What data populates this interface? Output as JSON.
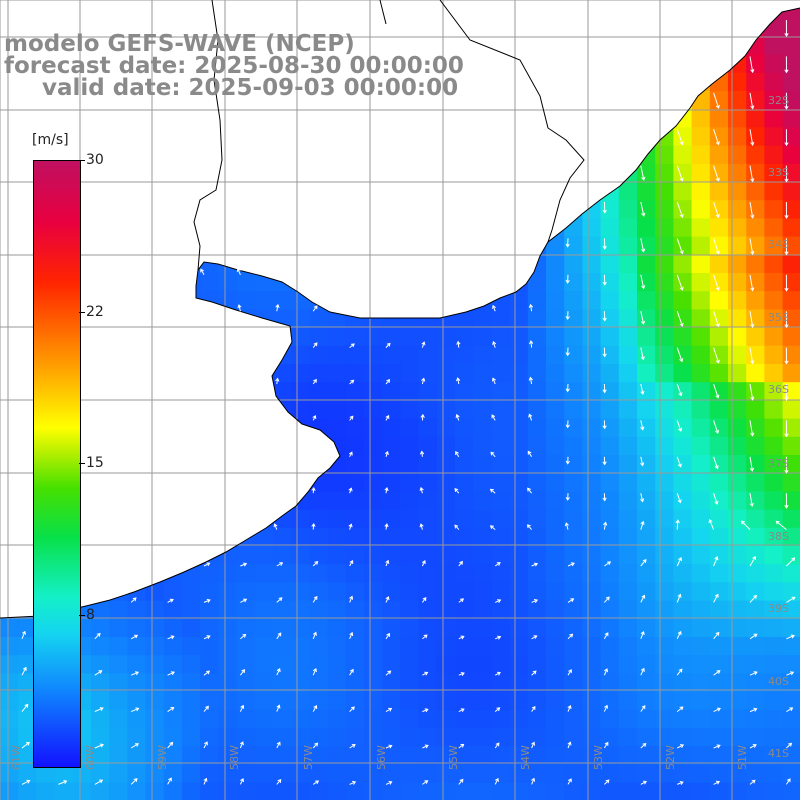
{
  "header": {
    "line1": "modelo GEFS-WAVE (NCEP)",
    "line2": "forecast date: 2025-08-30 00:00:00",
    "line3": "valid date: 2025-09-03 00:00:00"
  },
  "colorbar": {
    "unit": "[m/s]",
    "min": 0,
    "max": 30,
    "ticks": [
      {
        "label": "30",
        "value": 30
      },
      {
        "label": "22",
        "value": 22.5
      },
      {
        "label": "15",
        "value": 15
      },
      {
        "label": "8",
        "value": 7.5
      }
    ]
  },
  "map": {
    "variable": "wind speed and direction",
    "lat_labels": [
      "32S",
      "33S",
      "34S",
      "35S",
      "36S",
      "37S",
      "38S",
      "39S",
      "40S",
      "41S"
    ],
    "lon_labels": [
      "61W",
      "60W",
      "59W",
      "58W",
      "57W",
      "56W",
      "55W",
      "54W",
      "53W",
      "52W",
      "51W"
    ],
    "colors": {
      "land": "#ffffff",
      "coastline": "#000000",
      "grid": "#9a9a9a",
      "vectors": "#ffffff",
      "label": "#8a8a8a"
    }
  }
}
